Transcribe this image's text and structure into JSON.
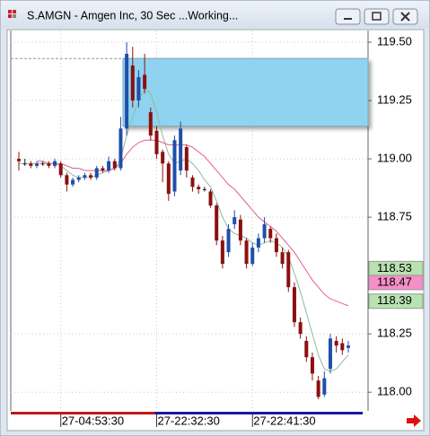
{
  "window_title": "S.AMGN - Amgen Inc, 30 Sec ...Working...",
  "chart_data": {
    "type": "candlestick",
    "categories": [
      null,
      null,
      null,
      null,
      null,
      null,
      null,
      "27-04:53:30",
      null,
      null,
      null,
      null,
      null,
      null,
      null,
      null,
      null,
      null,
      null,
      null,
      null,
      null,
      null,
      "27-22:32:30",
      null,
      null,
      null,
      null,
      null,
      null,
      null,
      null,
      null,
      null,
      null,
      null,
      null,
      null,
      null,
      "27-22:41:30",
      null,
      null,
      null,
      null,
      null,
      null,
      null,
      null,
      null,
      null,
      null,
      null,
      null,
      null,
      null,
      null
    ],
    "open": [
      119.0,
      118.98,
      118.98,
      118.97,
      118.98,
      118.98,
      118.97,
      118.98,
      118.93,
      118.89,
      118.91,
      118.92,
      118.93,
      118.92,
      118.96,
      118.95,
      118.99,
      118.96,
      119.13,
      119.4,
      119.25,
      119.36,
      119.2,
      119.12,
      119.03,
      118.98,
      118.86,
      118.95,
      119.05,
      118.92,
      118.88,
      118.87,
      118.86,
      118.8,
      118.65,
      118.6,
      118.72,
      118.74,
      118.65,
      118.55,
      118.62,
      118.66,
      118.7,
      118.66,
      118.6,
      118.6,
      118.45,
      118.3,
      118.22,
      118.15,
      118.05,
      117.99,
      118.1,
      118.22,
      118.21,
      118.19
    ],
    "high": [
      119.03,
      119.0,
      118.99,
      118.99,
      118.99,
      118.99,
      119.0,
      118.99,
      118.94,
      118.92,
      118.93,
      118.94,
      118.94,
      118.97,
      118.97,
      119.01,
      119.0,
      119.18,
      119.5,
      119.48,
      119.38,
      119.45,
      119.22,
      119.14,
      119.04,
      118.99,
      119.1,
      119.16,
      119.06,
      118.93,
      118.89,
      118.88,
      118.87,
      118.81,
      118.67,
      118.72,
      118.78,
      118.76,
      118.66,
      118.64,
      118.68,
      118.75,
      118.71,
      118.68,
      118.62,
      118.61,
      118.47,
      118.32,
      118.24,
      118.17,
      118.07,
      118.09,
      118.25,
      118.24,
      118.23,
      118.22
    ],
    "low": [
      118.95,
      118.97,
      118.96,
      118.96,
      118.97,
      118.96,
      118.96,
      118.92,
      118.86,
      118.88,
      118.9,
      118.91,
      118.91,
      118.91,
      118.94,
      118.94,
      118.95,
      118.95,
      119.1,
      119.22,
      119.22,
      119.28,
      119.08,
      119.0,
      118.9,
      118.82,
      118.84,
      118.93,
      118.92,
      118.86,
      118.85,
      118.86,
      118.79,
      118.63,
      118.53,
      118.58,
      118.7,
      118.63,
      118.53,
      118.54,
      118.6,
      118.64,
      118.64,
      118.58,
      118.53,
      118.43,
      118.28,
      118.23,
      118.13,
      118.05,
      117.97,
      117.98,
      118.08,
      118.17,
      118.16,
      118.17
    ],
    "close": [
      118.99,
      118.98,
      118.97,
      118.98,
      118.98,
      118.97,
      118.99,
      118.93,
      118.89,
      118.91,
      118.92,
      118.93,
      118.92,
      118.96,
      118.95,
      118.99,
      118.96,
      119.13,
      119.45,
      119.25,
      119.35,
      119.3,
      119.1,
      119.02,
      118.98,
      118.85,
      119.08,
      119.13,
      118.95,
      118.88,
      118.87,
      118.87,
      118.8,
      118.65,
      118.55,
      118.7,
      118.75,
      118.65,
      118.55,
      118.62,
      118.66,
      118.72,
      118.66,
      118.6,
      118.55,
      118.45,
      118.3,
      118.25,
      118.15,
      118.08,
      117.98,
      118.06,
      118.23,
      118.2,
      118.18,
      118.2
    ],
    "up_color": "#1f4fa8",
    "down_color": "#8b1010",
    "overlays": [
      {
        "color": "#8fbc9a",
        "values": [
          118.98,
          118.98,
          118.98,
          118.98,
          118.98,
          118.98,
          118.98,
          118.97,
          118.95,
          118.93,
          118.92,
          118.92,
          118.92,
          118.93,
          118.94,
          118.95,
          118.96,
          119.0,
          119.1,
          119.18,
          119.25,
          119.3,
          119.28,
          119.2,
          119.1,
          119.02,
          118.98,
          118.99,
          119.0,
          118.98,
          118.95,
          118.91,
          118.88,
          118.82,
          118.75,
          118.7,
          118.68,
          118.67,
          118.66,
          118.64,
          118.63,
          118.64,
          118.65,
          118.64,
          118.62,
          118.58,
          118.51,
          118.43,
          118.34,
          118.25,
          118.16,
          118.1,
          118.09,
          118.1,
          118.13,
          118.16
        ]
      },
      {
        "color": "#e0608f",
        "values": [
          null,
          null,
          null,
          118.99,
          118.99,
          118.98,
          118.98,
          118.98,
          118.97,
          118.96,
          118.96,
          118.95,
          118.95,
          118.95,
          118.95,
          118.95,
          118.96,
          118.98,
          119.02,
          119.05,
          119.07,
          119.08,
          119.08,
          119.08,
          119.07,
          119.06,
          119.06,
          119.06,
          119.06,
          119.05,
          119.03,
          119.01,
          118.98,
          118.95,
          118.92,
          118.89,
          118.87,
          118.84,
          118.81,
          118.78,
          118.75,
          118.73,
          118.71,
          118.69,
          118.66,
          118.63,
          118.6,
          118.56,
          118.52,
          118.48,
          118.45,
          118.42,
          118.4,
          118.39,
          118.38,
          118.37
        ]
      }
    ],
    "zone": {
      "from": 119.14,
      "to": 119.43,
      "color": "#8fd3f0"
    },
    "price_markers": [
      {
        "value": 118.53,
        "color": "#b8e2b0"
      },
      {
        "value": 118.47,
        "color": "#f58fc8"
      },
      {
        "value": 118.39,
        "color": "#b8e2b0"
      }
    ],
    "ylim": [
      117.92,
      119.55
    ],
    "yticks": [
      {
        "value": 119.5,
        "label": "119.50"
      },
      119.25,
      {
        "value": 119.0,
        "label": "119.00"
      },
      118.75,
      118.25,
      {
        "value": 118.0,
        "label": "118.00"
      }
    ],
    "grid": true
  }
}
